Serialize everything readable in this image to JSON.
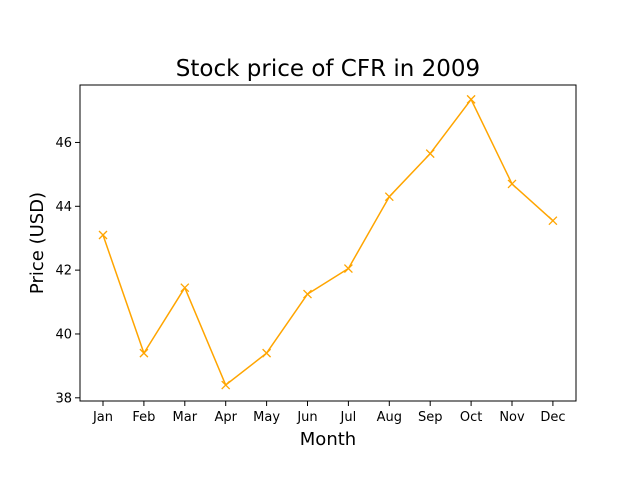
{
  "chart_data": {
    "type": "line",
    "title": "Stock price of CFR in 2009",
    "xlabel": "Month",
    "ylabel": "Price (USD)",
    "categories": [
      "Jan",
      "Feb",
      "Mar",
      "Apr",
      "May",
      "Jun",
      "Jul",
      "Aug",
      "Sep",
      "Oct",
      "Nov",
      "Dec"
    ],
    "series": [
      {
        "values": [
          43.1,
          39.4,
          41.45,
          38.4,
          39.4,
          41.25,
          42.05,
          44.3,
          45.65,
          47.35,
          44.7,
          43.55
        ],
        "color": "#ffa500",
        "marker": "x"
      }
    ],
    "ylim": [
      37.9,
      47.8
    ],
    "yticks": [
      38,
      40,
      42,
      44,
      46
    ],
    "grid": false,
    "legend": "none"
  }
}
